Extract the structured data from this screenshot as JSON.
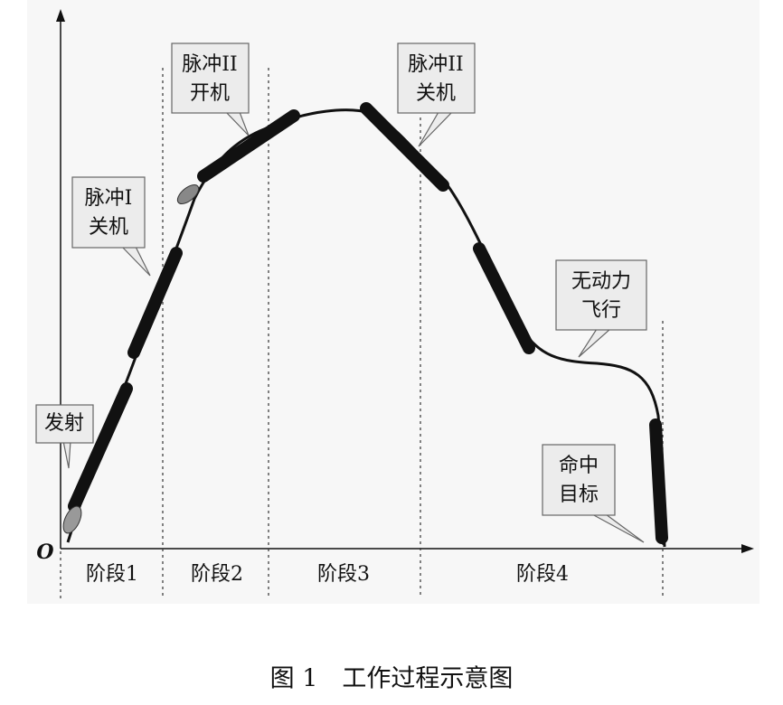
{
  "axis": {
    "origin": "O"
  },
  "callouts": [
    {
      "lines": [
        "发射"
      ]
    },
    {
      "lines": [
        "脉冲I",
        "关机"
      ]
    },
    {
      "lines": [
        "脉冲II",
        "开机"
      ]
    },
    {
      "lines": [
        "脉冲II",
        "关机"
      ]
    },
    {
      "lines": [
        "无动力",
        "飞行"
      ]
    },
    {
      "lines": [
        "命中",
        "目标"
      ]
    }
  ],
  "phases": [
    "阶段1",
    "阶段2",
    "阶段3",
    "阶段4"
  ],
  "caption": "图 1　工作过程示意图"
}
